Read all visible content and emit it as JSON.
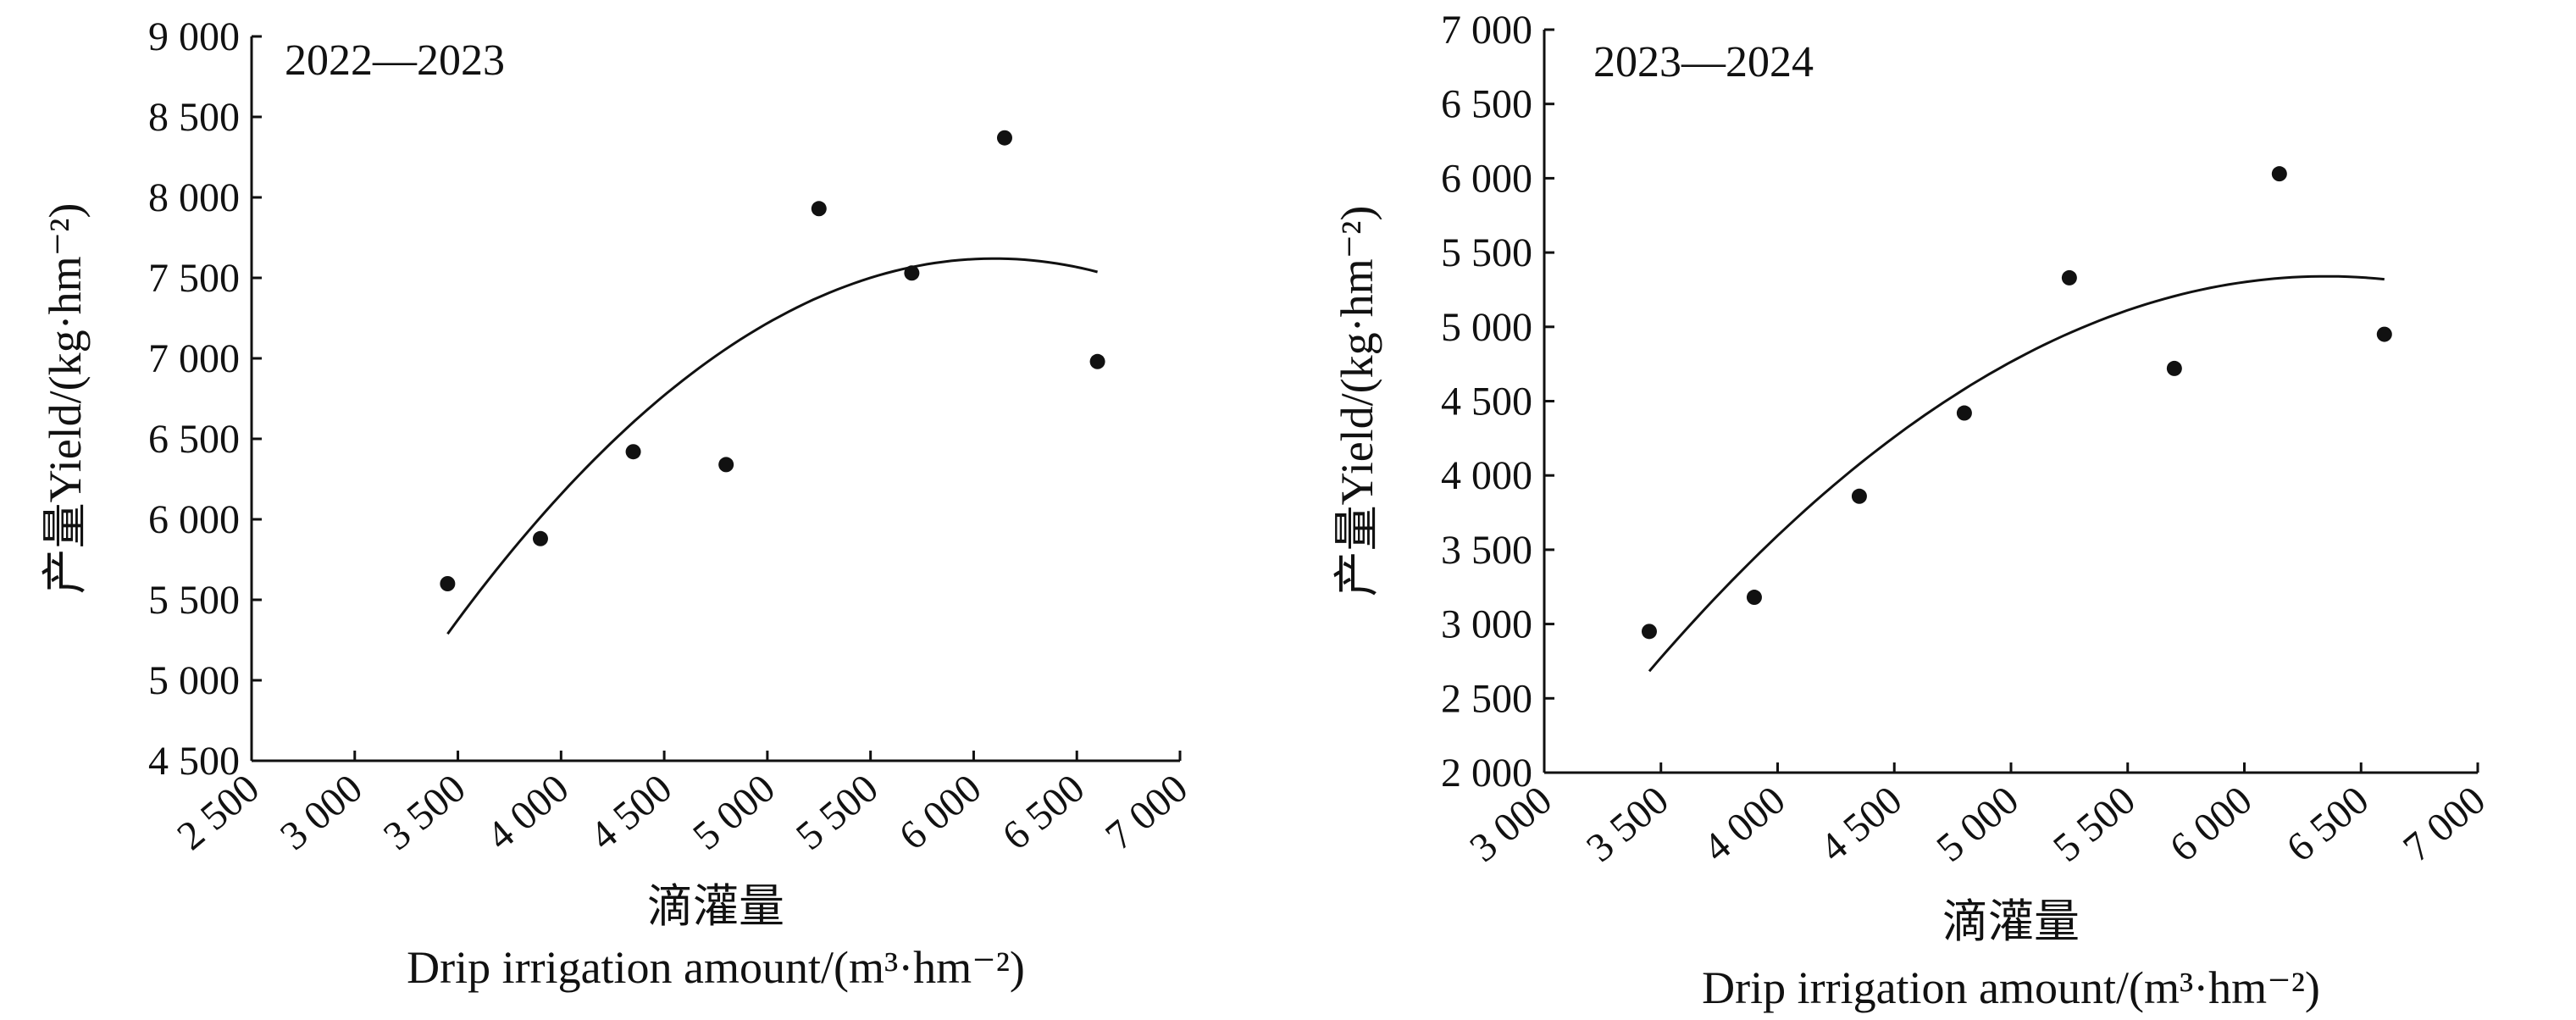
{
  "chart_data": [
    {
      "type": "scatter",
      "title": "2022—2023",
      "xlabel_cn": "滴灌量",
      "xlabel_en": "Drip irrigation amount/(m³·hm⁻²)",
      "ylabel": "产量Yield/(kg·hm⁻²)",
      "xlim": [
        2500,
        7000
      ],
      "ylim": [
        4500,
        9000
      ],
      "xticks": [
        2500,
        3000,
        3500,
        4000,
        4500,
        5000,
        5500,
        6000,
        6500,
        7000
      ],
      "xtick_labels": [
        "2 500",
        "3 000",
        "3 500",
        "4 000",
        "4 500",
        "5 000",
        "5 500",
        "6 000",
        "6 500",
        "7 000"
      ],
      "yticks": [
        4500,
        5000,
        5500,
        6000,
        6500,
        7000,
        7500,
        8000,
        8500,
        9000
      ],
      "ytick_labels": [
        "4 500",
        "5 000",
        "5 500",
        "6 000",
        "6 500",
        "7 000",
        "7 500",
        "8 000",
        "8 500",
        "9 000"
      ],
      "x": [
        3450,
        3900,
        4350,
        4800,
        5250,
        5700,
        6150,
        6600
      ],
      "y": [
        5600,
        5880,
        6420,
        6340,
        7930,
        7530,
        8370,
        6980
      ],
      "fit": {
        "type": "quadratic",
        "vertex_x": 6100,
        "vertex_y": 7620,
        "a": -0.000332,
        "x_range": [
          3450,
          6600
        ]
      },
      "grid": false
    },
    {
      "type": "scatter",
      "title": "2023—2024",
      "xlabel_cn": "滴灌量",
      "xlabel_en": "Drip irrigation amount/(m³·hm⁻²)",
      "ylabel": "产量Yield/(kg·hm⁻²)",
      "xlim": [
        3000,
        7000
      ],
      "ylim": [
        2000,
        7000
      ],
      "xticks": [
        3000,
        3500,
        4000,
        4500,
        5000,
        5500,
        6000,
        6500,
        7000
      ],
      "xtick_labels": [
        "3 000",
        "3 500",
        "4 000",
        "4 500",
        "5 000",
        "5 500",
        "6 000",
        "6 500",
        "7 000"
      ],
      "yticks": [
        2000,
        2500,
        3000,
        3500,
        4000,
        4500,
        5000,
        5500,
        6000,
        6500,
        7000
      ],
      "ytick_labels": [
        "2 000",
        "2 500",
        "3 000",
        "3 500",
        "4 000",
        "4 500",
        "5 000",
        "5 500",
        "6 000",
        "6 500",
        "7 000"
      ],
      "x": [
        3450,
        3900,
        4350,
        4800,
        5250,
        5700,
        6150,
        6600
      ],
      "y": [
        2950,
        3180,
        3860,
        4420,
        5330,
        4720,
        6030,
        4950
      ],
      "fit": {
        "type": "quadratic",
        "vertex_x": 6350,
        "vertex_y": 5340,
        "a": -0.000316,
        "x_range": [
          3450,
          6600
        ]
      },
      "grid": false
    }
  ]
}
